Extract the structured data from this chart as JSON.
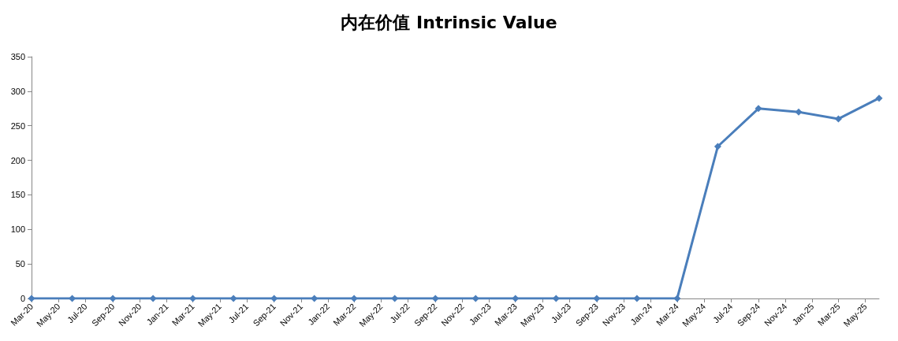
{
  "chart_data": {
    "type": "line",
    "title": "内在价值 Intrinsic Value",
    "x": [
      "2020-03",
      "2020-06",
      "2020-09",
      "2020-12",
      "2021-03",
      "2021-06",
      "2021-09",
      "2021-12",
      "2022-03",
      "2022-06",
      "2022-09",
      "2022-12",
      "2023-03",
      "2023-06",
      "2023-09",
      "2023-12",
      "2024-03",
      "2024-06",
      "2024-09",
      "2024-12",
      "2025-03",
      "2025-06"
    ],
    "series": [
      {
        "color": "#4a7ebb",
        "values": [
          0,
          0,
          0,
          0,
          0,
          0,
          0,
          0,
          0,
          0,
          0,
          0,
          0,
          0,
          0,
          0,
          0,
          220,
          275,
          270,
          260,
          290
        ]
      }
    ],
    "xlim": [
      "2020-03",
      "2025-06"
    ],
    "xticks": [
      {
        "value": "2020-03",
        "label": "Mar-20"
      },
      {
        "value": "2020-05",
        "label": "May-20"
      },
      {
        "value": "2020-07",
        "label": "Jul-20"
      },
      {
        "value": "2020-09",
        "label": "Sep-20"
      },
      {
        "value": "2020-11",
        "label": "Nov-20"
      },
      {
        "value": "2021-01",
        "label": "Jan-21"
      },
      {
        "value": "2021-03",
        "label": "Mar-21"
      },
      {
        "value": "2021-05",
        "label": "May-21"
      },
      {
        "value": "2021-07",
        "label": "Jul-21"
      },
      {
        "value": "2021-09",
        "label": "Sep-21"
      },
      {
        "value": "2021-11",
        "label": "Nov-21"
      },
      {
        "value": "2022-01",
        "label": "Jan-22"
      },
      {
        "value": "2022-03",
        "label": "Mar-22"
      },
      {
        "value": "2022-05",
        "label": "May-22"
      },
      {
        "value": "2022-07",
        "label": "Jul-22"
      },
      {
        "value": "2022-09",
        "label": "Sep-22"
      },
      {
        "value": "2022-11",
        "label": "Nov-22"
      },
      {
        "value": "2023-01",
        "label": "Jan-23"
      },
      {
        "value": "2023-03",
        "label": "Mar-23"
      },
      {
        "value": "2023-05",
        "label": "May-23"
      },
      {
        "value": "2023-07",
        "label": "Jul-23"
      },
      {
        "value": "2023-09",
        "label": "Sep-23"
      },
      {
        "value": "2023-11",
        "label": "Nov-23"
      },
      {
        "value": "2024-01",
        "label": "Jan-24"
      },
      {
        "value": "2024-03",
        "label": "Mar-24"
      },
      {
        "value": "2024-05",
        "label": "May-24"
      },
      {
        "value": "2024-07",
        "label": "Jul-24"
      },
      {
        "value": "2024-09",
        "label": "Sep-24"
      },
      {
        "value": "2024-11",
        "label": "Nov-24"
      },
      {
        "value": "2025-01",
        "label": "Jan-25"
      },
      {
        "value": "2025-03",
        "label": "Mar-25"
      },
      {
        "value": "2025-05",
        "label": "May-25"
      }
    ],
    "ylim": [
      0,
      350
    ],
    "yticks": [
      0,
      50,
      100,
      150,
      200,
      250,
      300,
      350
    ],
    "grid": false,
    "marker": "diamond",
    "line_style": "solid"
  }
}
